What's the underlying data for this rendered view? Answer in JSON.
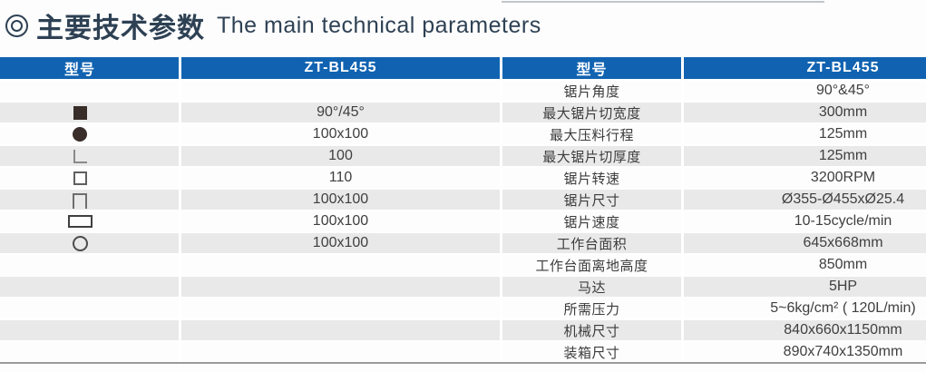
{
  "title": {
    "zh": "主要技术参数",
    "en": "The main technical parameters"
  },
  "colors": {
    "header_blue": "#1163b1",
    "row_alt_gray": "#e9e9e9",
    "title_color": "#2e4154",
    "body_text": "#3f3f3f",
    "bottom_rule": "#9b9b9b"
  },
  "left_table": {
    "headers": [
      "型号",
      "ZT-BL455"
    ],
    "rows": [
      {
        "shape": "",
        "value": ""
      },
      {
        "shape": "solid-square",
        "value": "90°/45°"
      },
      {
        "shape": "solid-circle",
        "value": "100x100"
      },
      {
        "shape": "angle",
        "value": "100"
      },
      {
        "shape": "hollow-square",
        "value": "110"
      },
      {
        "shape": "channel",
        "value": "100x100"
      },
      {
        "shape": "hollow-rect",
        "value": "100x100"
      },
      {
        "shape": "hollow-circle",
        "value": "100x100"
      },
      {
        "shape": "",
        "value": ""
      },
      {
        "shape": "",
        "value": ""
      },
      {
        "shape": "",
        "value": ""
      },
      {
        "shape": "",
        "value": ""
      },
      {
        "shape": "",
        "value": ""
      }
    ]
  },
  "right_table": {
    "headers": [
      "型号",
      "ZT-BL455"
    ],
    "rows": [
      {
        "param": "锯片角度",
        "value": "90°&45°"
      },
      {
        "param": "最大锯片切宽度",
        "value": "300mm"
      },
      {
        "param": "最大压料行程",
        "value": "125mm"
      },
      {
        "param": "最大锯片切厚度",
        "value": "125mm"
      },
      {
        "param": "锯片转速",
        "value": "3200RPM"
      },
      {
        "param": "锯片尺寸",
        "value": "Ø355-Ø455xØ25.4"
      },
      {
        "param": "锯片速度",
        "value": "10-15cycle/min"
      },
      {
        "param": "工作台面积",
        "value": "645x668mm"
      },
      {
        "param": "工作台面离地高度",
        "value": "850mm"
      },
      {
        "param": "马达",
        "value": "5HP"
      },
      {
        "param": "所需压力",
        "value": "5~6kg/cm² ( 120L/min)"
      },
      {
        "param": "机械尺寸",
        "value": "840x660x1150mm"
      },
      {
        "param": "装箱尺寸",
        "value": "890x740x1350mm"
      }
    ]
  }
}
